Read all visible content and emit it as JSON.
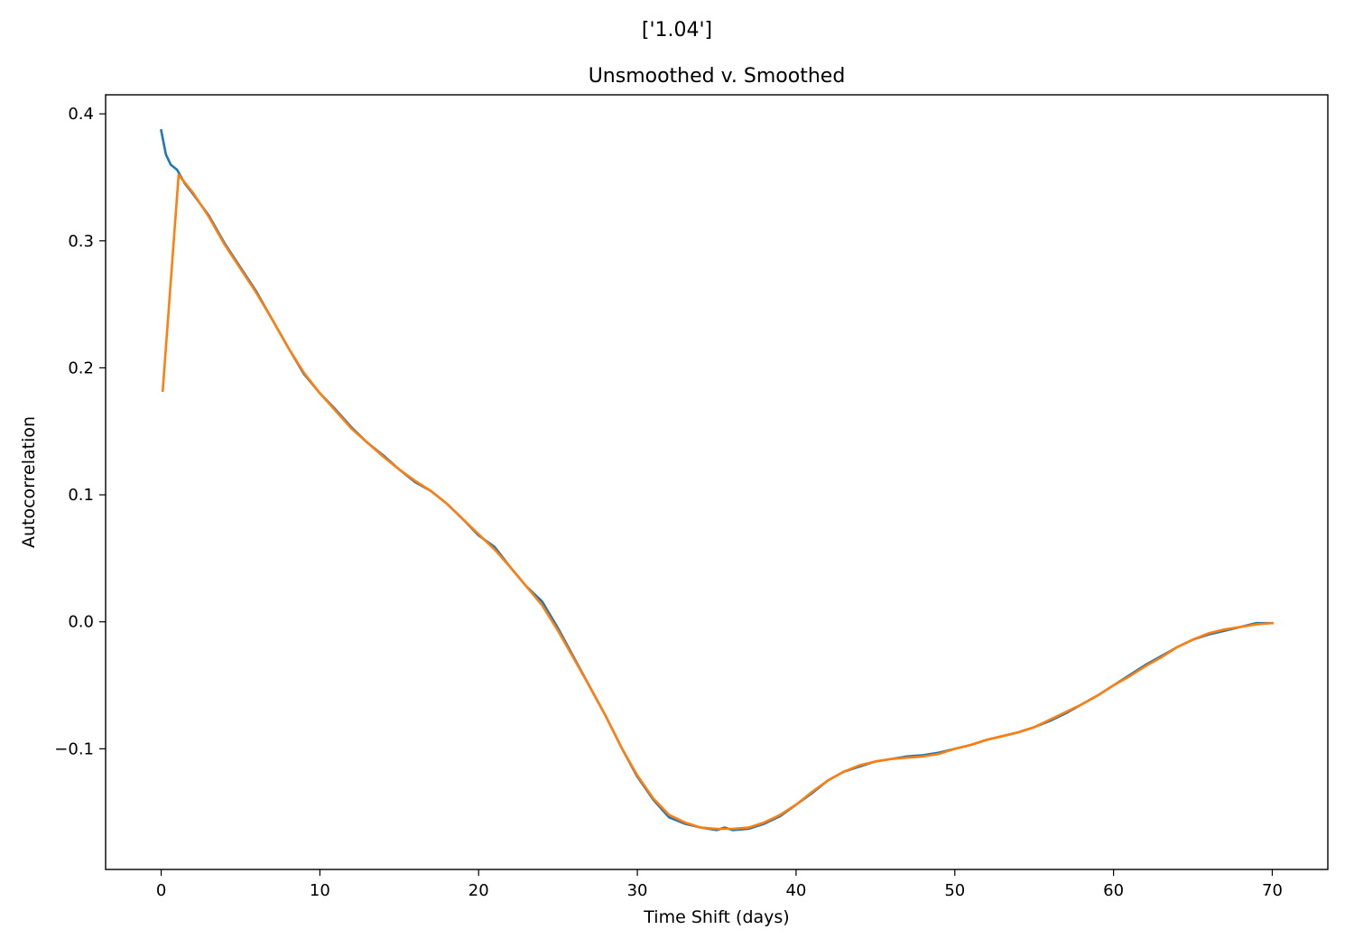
{
  "figure": {
    "suptitle": "['1.04']"
  },
  "chart_data": {
    "type": "line",
    "title": "Unsmoothed v. Smoothed",
    "xlabel": "Time Shift (days)",
    "ylabel": "Autocorrelation",
    "xlim": [
      -3.5,
      73.5
    ],
    "ylim": [
      -0.195,
      0.415
    ],
    "xticks": [
      0,
      10,
      20,
      30,
      40,
      50,
      60,
      70
    ],
    "xtick_labels": [
      "0",
      "10",
      "20",
      "30",
      "40",
      "50",
      "60",
      "70"
    ],
    "yticks": [
      -0.1,
      0.0,
      0.1,
      0.2,
      0.3,
      0.4
    ],
    "ytick_labels": [
      "−0.1",
      "0.0",
      "0.1",
      "0.2",
      "0.3",
      "0.4"
    ],
    "grid": false,
    "legend": "none",
    "series": [
      {
        "color": "#1f77b4",
        "x": [
          0,
          0.3,
          0.6,
          1,
          1.5,
          2,
          3,
          4,
          5,
          6,
          7,
          8,
          9,
          10,
          11,
          12,
          13,
          14,
          15,
          16,
          17,
          18,
          19,
          20,
          21,
          22,
          23,
          24,
          25,
          26,
          27,
          28,
          29,
          30,
          31,
          32,
          33,
          34,
          35,
          35.5,
          36,
          37,
          38,
          39,
          40,
          41,
          42,
          43,
          44,
          45,
          46,
          47,
          48,
          49,
          50,
          51,
          52,
          53,
          54,
          55,
          56,
          57,
          58,
          59,
          60,
          61,
          62,
          63,
          64,
          65,
          66,
          67,
          68,
          69,
          70
        ],
        "y": [
          0.387,
          0.368,
          0.36,
          0.356,
          0.345,
          0.337,
          0.32,
          0.298,
          0.279,
          0.26,
          0.238,
          0.216,
          0.195,
          0.18,
          0.167,
          0.153,
          0.141,
          0.131,
          0.12,
          0.11,
          0.103,
          0.093,
          0.081,
          0.068,
          0.059,
          0.043,
          0.028,
          0.016,
          -0.005,
          -0.028,
          -0.051,
          -0.074,
          -0.099,
          -0.122,
          -0.14,
          -0.154,
          -0.159,
          -0.162,
          -0.164,
          -0.162,
          -0.164,
          -0.163,
          -0.159,
          -0.153,
          -0.144,
          -0.135,
          -0.125,
          -0.118,
          -0.114,
          -0.11,
          -0.108,
          -0.106,
          -0.105,
          -0.103,
          -0.1,
          -0.097,
          -0.093,
          -0.09,
          -0.087,
          -0.083,
          -0.078,
          -0.072,
          -0.065,
          -0.058,
          -0.05,
          -0.042,
          -0.034,
          -0.027,
          -0.02,
          -0.014,
          -0.01,
          -0.007,
          -0.004,
          -0.001,
          -0.001
        ]
      },
      {
        "color": "#ff7f0e",
        "x": [
          0.1,
          1.1,
          2,
          3,
          4,
          5,
          6,
          7,
          8,
          9,
          10,
          11,
          12,
          13,
          14,
          15,
          16,
          17,
          18,
          19,
          20,
          21,
          22,
          23,
          24,
          25,
          26,
          27,
          28,
          29,
          30,
          31,
          32,
          33,
          34,
          35,
          36,
          37,
          38,
          39,
          40,
          41,
          42,
          43,
          44,
          45,
          46,
          47,
          48,
          49,
          50,
          51,
          52,
          53,
          54,
          55,
          56,
          57,
          58,
          59,
          60,
          61,
          62,
          63,
          64,
          65,
          66,
          67,
          68,
          69,
          70
        ],
        "y": [
          0.182,
          0.352,
          0.338,
          0.319,
          0.297,
          0.278,
          0.259,
          0.238,
          0.216,
          0.196,
          0.18,
          0.166,
          0.152,
          0.141,
          0.13,
          0.12,
          0.111,
          0.103,
          0.093,
          0.081,
          0.069,
          0.057,
          0.043,
          0.028,
          0.013,
          -0.007,
          -0.029,
          -0.051,
          -0.074,
          -0.099,
          -0.121,
          -0.139,
          -0.152,
          -0.158,
          -0.162,
          -0.163,
          -0.163,
          -0.162,
          -0.158,
          -0.152,
          -0.144,
          -0.134,
          -0.125,
          -0.118,
          -0.113,
          -0.11,
          -0.108,
          -0.107,
          -0.106,
          -0.104,
          -0.1,
          -0.097,
          -0.093,
          -0.09,
          -0.087,
          -0.083,
          -0.077,
          -0.071,
          -0.065,
          -0.058,
          -0.05,
          -0.043,
          -0.035,
          -0.028,
          -0.02,
          -0.014,
          -0.009,
          -0.006,
          -0.004,
          -0.002,
          -0.001
        ]
      }
    ]
  }
}
